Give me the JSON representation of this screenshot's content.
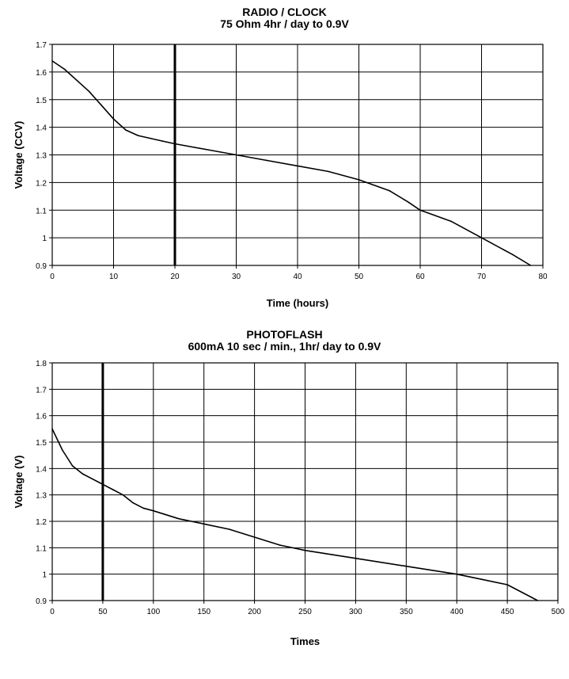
{
  "chart_data": [
    {
      "type": "line",
      "title": "RADIO / CLOCK",
      "subtitle": "75 Ohm 4hr / day to 0.9V",
      "xlabel": "Time (hours)",
      "ylabel": "Voltage (CCV)",
      "xlim": [
        0,
        80
      ],
      "ylim": [
        0.9,
        1.7
      ],
      "xticks": [
        "0",
        "10",
        "20",
        "30",
        "40",
        "50",
        "60",
        "70",
        "80"
      ],
      "yticks": [
        "0.9",
        "1",
        "1.1",
        "1.2",
        "1.3",
        "1.4",
        "1.5",
        "1.6",
        "1.7"
      ],
      "grid": true,
      "marker_x": 20,
      "x": [
        0,
        2,
        4,
        6,
        8,
        10,
        12,
        14,
        16,
        18,
        20,
        25,
        30,
        35,
        40,
        45,
        50,
        55,
        58,
        60,
        65,
        70,
        75,
        78
      ],
      "y": [
        1.64,
        1.61,
        1.57,
        1.53,
        1.48,
        1.43,
        1.39,
        1.37,
        1.36,
        1.35,
        1.34,
        1.32,
        1.3,
        1.28,
        1.26,
        1.24,
        1.21,
        1.17,
        1.13,
        1.1,
        1.06,
        1.0,
        0.94,
        0.9
      ]
    },
    {
      "type": "line",
      "title": "PHOTOFLASH",
      "subtitle": "600mA 10 sec / min., 1hr/ day to 0.9V",
      "xlabel": "Times",
      "ylabel": "Voltage (V)",
      "xlim": [
        0,
        500
      ],
      "ylim": [
        0.9,
        1.8
      ],
      "xticks": [
        "0",
        "50",
        "100",
        "150",
        "200",
        "250",
        "300",
        "350",
        "400",
        "450",
        "500"
      ],
      "yticks": [
        "0.9",
        "1",
        "1.1",
        "1.2",
        "1.3",
        "1.4",
        "1.5",
        "1.6",
        "1.7",
        "1.8"
      ],
      "grid": true,
      "marker_x": 50,
      "x": [
        0,
        10,
        20,
        30,
        40,
        50,
        60,
        70,
        80,
        90,
        100,
        125,
        150,
        175,
        200,
        225,
        250,
        300,
        350,
        400,
        425,
        450,
        465,
        480
      ],
      "y": [
        1.55,
        1.47,
        1.41,
        1.38,
        1.36,
        1.34,
        1.32,
        1.3,
        1.27,
        1.25,
        1.24,
        1.21,
        1.19,
        1.17,
        1.14,
        1.11,
        1.09,
        1.06,
        1.03,
        1.0,
        0.98,
        0.96,
        0.93,
        0.9
      ]
    }
  ]
}
